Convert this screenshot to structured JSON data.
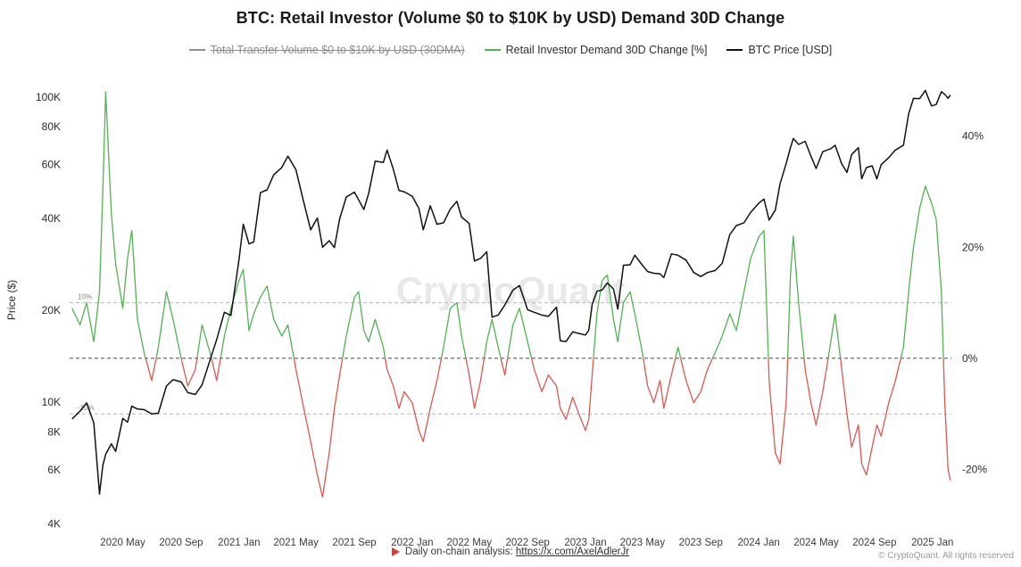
{
  "title": "BTC: Retail Investor (Volume $0 to $10K by USD) Demand 30D Change",
  "watermark": "CryptoQuant",
  "legend": [
    {
      "label": "Total Transfer Volume $0 to $10K by USD (30DMA)",
      "color": "#8d8d8d",
      "disabled": true
    },
    {
      "label": "Retail Investor Demand 30D Change [%]",
      "color": "#53b253",
      "disabled": false
    },
    {
      "label": "BTC Price [USD]",
      "color": "#111111",
      "disabled": false
    }
  ],
  "footer": {
    "note_label": "Daily on-chain analysis:",
    "link_text": "https://x.com/AxelAdlerJr",
    "copyright": "© CryptoQuant. All rights reserved"
  },
  "chart_data": {
    "type": "line",
    "title": "BTC: Retail Investor (Volume $0 to $10K by USD) Demand 30D Change",
    "x_range": [
      "2020-01-10",
      "2025-02-10"
    ],
    "x_ticks": [
      {
        "label": "2020 May",
        "date": "2020-05-01"
      },
      {
        "label": "2020 Sep",
        "date": "2020-09-01"
      },
      {
        "label": "2021 Jan",
        "date": "2021-01-01"
      },
      {
        "label": "2021 May",
        "date": "2021-05-01"
      },
      {
        "label": "2021 Sep",
        "date": "2021-09-01"
      },
      {
        "label": "2022 Jan",
        "date": "2022-01-01"
      },
      {
        "label": "2022 May",
        "date": "2022-05-01"
      },
      {
        "label": "2022 Sep",
        "date": "2022-09-01"
      },
      {
        "label": "2023 Jan",
        "date": "2023-01-01"
      },
      {
        "label": "2023 May",
        "date": "2023-05-01"
      },
      {
        "label": "2023 Sep",
        "date": "2023-09-01"
      },
      {
        "label": "2024 Jan",
        "date": "2024-01-01"
      },
      {
        "label": "2024 May",
        "date": "2024-05-01"
      },
      {
        "label": "2024 Sep",
        "date": "2024-09-01"
      },
      {
        "label": "2025 Jan",
        "date": "2025-01-01"
      }
    ],
    "left_axis": {
      "label": "Price ($)",
      "scale": "log",
      "range": [
        3800,
        123000
      ],
      "ticks": [
        {
          "label": "100K",
          "value": 100000
        },
        {
          "label": "80K",
          "value": 80000
        },
        {
          "label": "60K",
          "value": 60000
        },
        {
          "label": "40K",
          "value": 40000
        },
        {
          "label": "20K",
          "value": 20000
        },
        {
          "label": "10K",
          "value": 10000
        },
        {
          "label": "8K",
          "value": 8000
        },
        {
          "label": "6K",
          "value": 6000
        },
        {
          "label": "4K",
          "value": 4000
        }
      ]
    },
    "right_axis": {
      "scale": "linear",
      "range": [
        -31,
        52
      ],
      "ticks": [
        {
          "label": "40%",
          "value": 40
        },
        {
          "label": "20%",
          "value": 20
        },
        {
          "label": "0%",
          "value": 0
        },
        {
          "label": "-20%",
          "value": -20
        }
      ]
    },
    "reference_lines": [
      {
        "value": 10,
        "label": "10%",
        "color": "#b5b5b5"
      },
      {
        "value": 0,
        "label": "",
        "color": "#4a4a4a"
      },
      {
        "value": -10,
        "label": "-10%",
        "color": "#b5b5b5"
      }
    ],
    "dates": [
      "2020-01-15",
      "2020-02-01",
      "2020-02-15",
      "2020-03-01",
      "2020-03-13",
      "2020-03-20",
      "2020-03-26",
      "2020-04-07",
      "2020-04-16",
      "2020-05-01",
      "2020-05-11",
      "2020-05-20",
      "2020-06-01",
      "2020-06-15",
      "2020-07-01",
      "2020-07-15",
      "2020-08-01",
      "2020-08-15",
      "2020-09-01",
      "2020-09-15",
      "2020-10-01",
      "2020-10-15",
      "2020-11-01",
      "2020-11-15",
      "2020-12-01",
      "2020-12-15",
      "2021-01-01",
      "2021-01-10",
      "2021-01-22",
      "2021-02-01",
      "2021-02-15",
      "2021-03-01",
      "2021-03-15",
      "2021-04-01",
      "2021-04-14",
      "2021-05-01",
      "2021-05-15",
      "2021-06-01",
      "2021-06-15",
      "2021-06-26",
      "2021-07-10",
      "2021-07-21",
      "2021-08-01",
      "2021-08-15",
      "2021-09-01",
      "2021-09-10",
      "2021-09-21",
      "2021-10-01",
      "2021-10-15",
      "2021-11-01",
      "2021-11-09",
      "2021-11-22",
      "2021-12-04",
      "2021-12-15",
      "2022-01-01",
      "2022-01-15",
      "2022-01-24",
      "2022-02-08",
      "2022-02-22",
      "2022-03-08",
      "2022-03-22",
      "2022-04-05",
      "2022-04-15",
      "2022-05-01",
      "2022-05-12",
      "2022-05-25",
      "2022-06-07",
      "2022-06-18",
      "2022-07-01",
      "2022-07-15",
      "2022-08-01",
      "2022-08-15",
      "2022-09-01",
      "2022-09-15",
      "2022-10-01",
      "2022-10-15",
      "2022-11-01",
      "2022-11-09",
      "2022-11-21",
      "2022-12-05",
      "2022-12-18",
      "2023-01-01",
      "2023-01-08",
      "2023-01-15",
      "2023-01-25",
      "2023-02-05",
      "2023-02-16",
      "2023-03-01",
      "2023-03-10",
      "2023-03-22",
      "2023-04-05",
      "2023-04-15",
      "2023-05-01",
      "2023-05-12",
      "2023-05-25",
      "2023-06-07",
      "2023-06-15",
      "2023-07-01",
      "2023-07-15",
      "2023-08-01",
      "2023-08-17",
      "2023-09-01",
      "2023-09-15",
      "2023-10-01",
      "2023-10-16",
      "2023-11-01",
      "2023-11-15",
      "2023-12-01",
      "2023-12-15",
      "2024-01-02",
      "2024-01-12",
      "2024-01-23",
      "2024-02-05",
      "2024-02-15",
      "2024-02-28",
      "2024-03-08",
      "2024-03-14",
      "2024-03-25",
      "2024-04-08",
      "2024-04-20",
      "2024-05-01",
      "2024-05-15",
      "2024-06-01",
      "2024-06-10",
      "2024-06-24",
      "2024-07-05",
      "2024-07-15",
      "2024-07-29",
      "2024-08-05",
      "2024-08-15",
      "2024-08-27",
      "2024-09-06",
      "2024-09-15",
      "2024-10-01",
      "2024-10-15",
      "2024-11-01",
      "2024-11-12",
      "2024-11-22",
      "2024-12-05",
      "2024-12-17",
      "2024-12-30",
      "2025-01-09",
      "2025-01-20",
      "2025-01-27",
      "2025-02-03",
      "2025-02-08"
    ],
    "series": [
      {
        "name": "BTC Price [USD]",
        "axis": "left",
        "color": "#111111",
        "values": [
          8800,
          9350,
          9950,
          8550,
          5000,
          6200,
          6750,
          7300,
          6900,
          8850,
          8600,
          9700,
          9500,
          9450,
          9150,
          9200,
          11300,
          11850,
          11650,
          10750,
          10600,
          11400,
          13750,
          16050,
          19700,
          19250,
          29300,
          38300,
          33000,
          33500,
          48600,
          49600,
          55600,
          58750,
          64000,
          57750,
          46750,
          36700,
          40150,
          32200,
          33800,
          32100,
          39900,
          47000,
          48800,
          46000,
          42800,
          48200,
          61600,
          61000,
          67000,
          58000,
          49400,
          48900,
          47300,
          43100,
          36700,
          44000,
          38300,
          38700,
          42900,
          45500,
          40400,
          38500,
          29000,
          29600,
          31100,
          19000,
          19300,
          20800,
          23300,
          24100,
          20100,
          19700,
          19300,
          19100,
          20500,
          15900,
          15800,
          17000,
          16800,
          16600,
          17200,
          20900,
          23100,
          23300,
          24600,
          23500,
          20200,
          28100,
          28200,
          30300,
          28100,
          26800,
          26450,
          26350,
          25600,
          30600,
          30300,
          29200,
          26600,
          25800,
          26600,
          27000,
          28500,
          35400,
          37900,
          38700,
          41900,
          45000,
          46300,
          39500,
          42600,
          51900,
          60600,
          68300,
          73100,
          69900,
          71600,
          64000,
          58300,
          66200,
          67700,
          69500,
          60300,
          56600,
          64800,
          68200,
          54000,
          58700,
          59500,
          53900,
          60000,
          63300,
          67000,
          69500,
          88000,
          98900,
          98800,
          105000,
          93500,
          94500,
          104000,
          102000,
          99000,
          101500
        ]
      },
      {
        "name": "Retail Investor Demand 30D Change [%]",
        "axis": "right",
        "color_positive": "#53b253",
        "color_negative": "#e4544f",
        "values": [
          9,
          6,
          10,
          3,
          12,
          30,
          48,
          26,
          17,
          9,
          18,
          23,
          7,
          1,
          -4,
          2,
          12,
          7,
          0,
          -5,
          -2,
          6,
          1,
          -4,
          4,
          9,
          14,
          16,
          5,
          8,
          11,
          13,
          7,
          4,
          6,
          -2,
          -8,
          -15,
          -21,
          -25,
          -17,
          -9,
          -3,
          4,
          11,
          12,
          5,
          3,
          7,
          2,
          -2,
          -5,
          -9,
          -6,
          -8,
          -13,
          -15,
          -9,
          -4,
          2,
          9,
          10,
          4,
          -3,
          -9,
          -4,
          3,
          7,
          2,
          -3,
          6,
          9,
          3,
          -2,
          -6,
          -3,
          -5,
          -9,
          -11,
          -7,
          -10,
          -13,
          -11,
          -3,
          8,
          14,
          15,
          7,
          3,
          10,
          12,
          8,
          1,
          -5,
          -8,
          -4,
          -9,
          -3,
          2,
          -4,
          -8,
          -6,
          -2,
          1,
          4,
          8,
          5,
          12,
          18,
          22,
          23,
          -4,
          -17,
          -19,
          -8,
          15,
          22,
          10,
          -2,
          -8,
          -12,
          -6,
          3,
          8,
          -2,
          -10,
          -16,
          -12,
          -19,
          -21,
          -16,
          -12,
          -14,
          -8,
          -4,
          2,
          12,
          20,
          27,
          31,
          28,
          25,
          12,
          -8,
          -20,
          -22
        ]
      }
    ]
  }
}
